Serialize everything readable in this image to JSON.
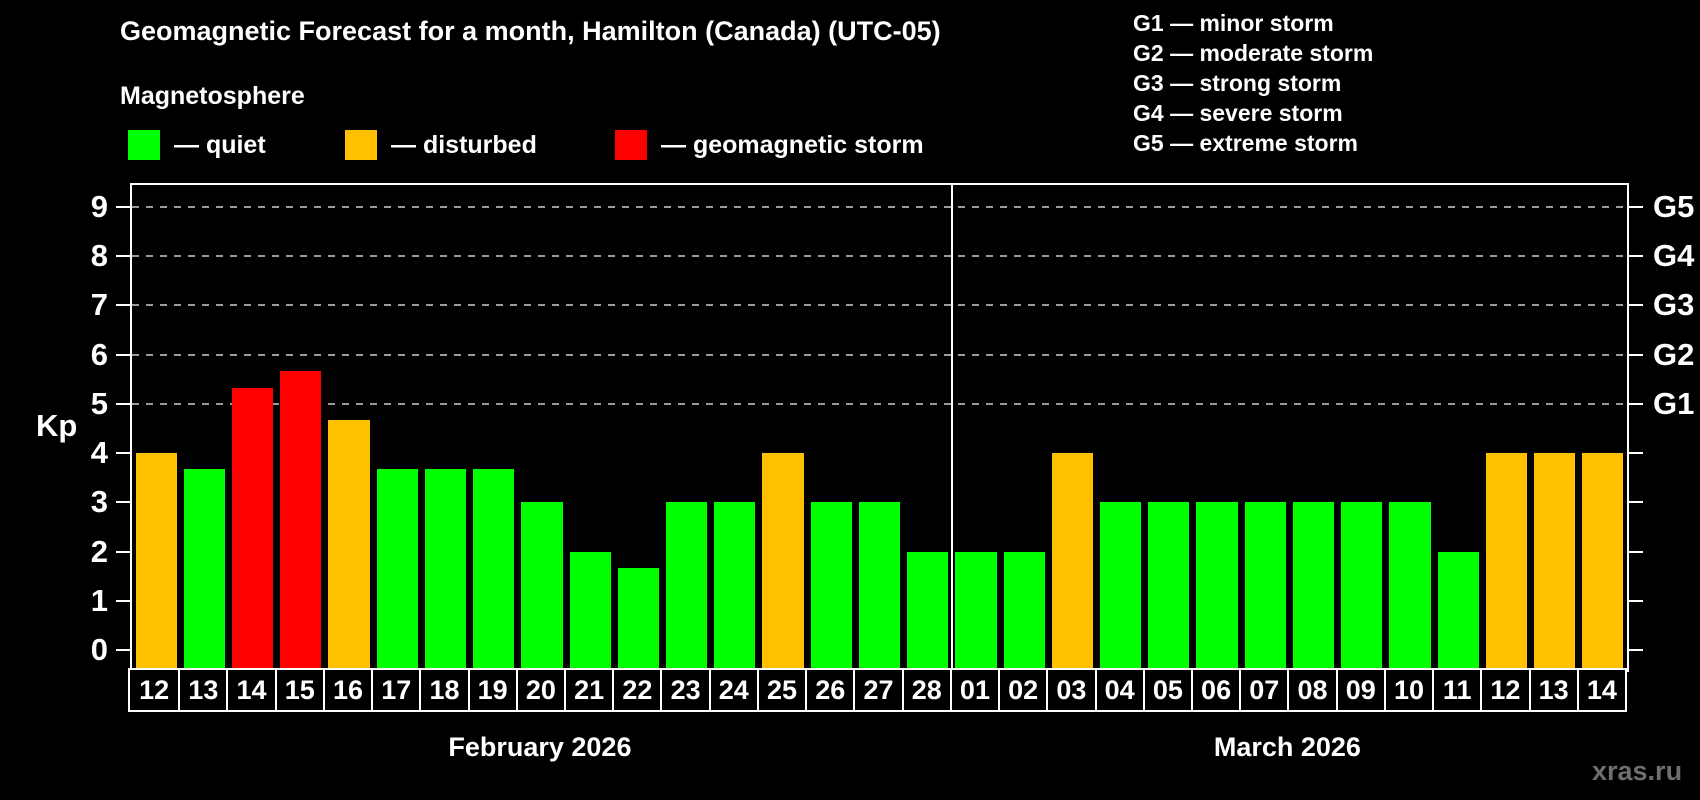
{
  "header": {
    "title": "Geomagnetic Forecast for a month, Hamilton (Canada) (UTC-05)",
    "subtitle": "Magnetosphere"
  },
  "legend": {
    "items": [
      {
        "label": "— quiet",
        "status": "quiet",
        "color": "#00ff00"
      },
      {
        "label": "— disturbed",
        "status": "disturbed",
        "color": "#ffc000"
      },
      {
        "label": "— geomagnetic storm",
        "status": "storm",
        "color": "#ff0000"
      }
    ]
  },
  "storm_scale": {
    "lines": [
      "G1 — minor storm",
      "G2 — moderate storm",
      "G3 — strong storm",
      "G4 — severe storm",
      "G5 — extreme storm"
    ]
  },
  "watermark": "xras.ru",
  "chart_data": {
    "type": "bar",
    "ylabel": "Kp",
    "ylim": [
      0,
      9
    ],
    "yticks": [
      0,
      1,
      2,
      3,
      4,
      5,
      6,
      7,
      8,
      9
    ],
    "gridlines_at_kp": [
      5,
      6,
      7,
      8,
      9
    ],
    "grid_style": "dashed-horizontal",
    "right_axis_labels": [
      {
        "kp": 5,
        "text": "G1"
      },
      {
        "kp": 6,
        "text": "G2"
      },
      {
        "kp": 7,
        "text": "G3"
      },
      {
        "kp": 8,
        "text": "G4"
      },
      {
        "kp": 9,
        "text": "G5"
      }
    ],
    "colors": {
      "quiet": "#00ff00",
      "disturbed": "#ffc000",
      "storm": "#ff0000"
    },
    "months": [
      {
        "label": "February 2026",
        "bars": [
          {
            "day": "12",
            "kp": 4.0,
            "status": "disturbed"
          },
          {
            "day": "13",
            "kp": 3.67,
            "status": "quiet"
          },
          {
            "day": "14",
            "kp": 5.33,
            "status": "storm"
          },
          {
            "day": "15",
            "kp": 5.67,
            "status": "storm"
          },
          {
            "day": "16",
            "kp": 4.67,
            "status": "disturbed"
          },
          {
            "day": "17",
            "kp": 3.67,
            "status": "quiet"
          },
          {
            "day": "18",
            "kp": 3.67,
            "status": "quiet"
          },
          {
            "day": "19",
            "kp": 3.67,
            "status": "quiet"
          },
          {
            "day": "20",
            "kp": 3.0,
            "status": "quiet"
          },
          {
            "day": "21",
            "kp": 2.0,
            "status": "quiet"
          },
          {
            "day": "22",
            "kp": 1.67,
            "status": "quiet"
          },
          {
            "day": "23",
            "kp": 3.0,
            "status": "quiet"
          },
          {
            "day": "24",
            "kp": 3.0,
            "status": "quiet"
          },
          {
            "day": "25",
            "kp": 4.0,
            "status": "disturbed"
          },
          {
            "day": "26",
            "kp": 3.0,
            "status": "quiet"
          },
          {
            "day": "27",
            "kp": 3.0,
            "status": "quiet"
          },
          {
            "day": "28",
            "kp": 2.0,
            "status": "quiet"
          }
        ]
      },
      {
        "label": "March 2026",
        "bars": [
          {
            "day": "01",
            "kp": 2.0,
            "status": "quiet"
          },
          {
            "day": "02",
            "kp": 2.0,
            "status": "quiet"
          },
          {
            "day": "03",
            "kp": 4.0,
            "status": "disturbed"
          },
          {
            "day": "04",
            "kp": 3.0,
            "status": "quiet"
          },
          {
            "day": "05",
            "kp": 3.0,
            "status": "quiet"
          },
          {
            "day": "06",
            "kp": 3.0,
            "status": "quiet"
          },
          {
            "day": "07",
            "kp": 3.0,
            "status": "quiet"
          },
          {
            "day": "08",
            "kp": 3.0,
            "status": "quiet"
          },
          {
            "day": "09",
            "kp": 3.0,
            "status": "quiet"
          },
          {
            "day": "10",
            "kp": 3.0,
            "status": "quiet"
          },
          {
            "day": "11",
            "kp": 2.0,
            "status": "quiet"
          },
          {
            "day": "12",
            "kp": 4.0,
            "status": "disturbed"
          },
          {
            "day": "13",
            "kp": 4.0,
            "status": "disturbed"
          },
          {
            "day": "14",
            "kp": 4.0,
            "status": "disturbed"
          }
        ]
      }
    ]
  }
}
